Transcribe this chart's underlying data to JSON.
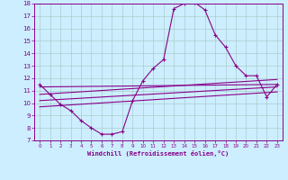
{
  "title": "",
  "xlabel": "Windchill (Refroidissement éolien,°C)",
  "background_color": "#cceeff",
  "line_color": "#880088",
  "grid_color": "#aacccc",
  "xlim": [
    -0.5,
    23.5
  ],
  "ylim": [
    7,
    18
  ],
  "yticks": [
    7,
    8,
    9,
    10,
    11,
    12,
    13,
    14,
    15,
    16,
    17,
    18
  ],
  "xticks": [
    0,
    1,
    2,
    3,
    4,
    5,
    6,
    7,
    8,
    9,
    10,
    11,
    12,
    13,
    14,
    15,
    16,
    17,
    18,
    19,
    20,
    21,
    22,
    23
  ],
  "main_x": [
    0,
    1,
    2,
    3,
    4,
    5,
    6,
    7,
    8,
    9,
    10,
    11,
    12,
    13,
    14,
    15,
    16,
    17,
    18,
    19,
    20,
    21,
    22,
    23
  ],
  "main_y": [
    11.5,
    10.7,
    9.9,
    9.4,
    8.6,
    8.0,
    7.5,
    7.5,
    7.7,
    10.2,
    11.8,
    12.8,
    13.5,
    17.6,
    18.0,
    18.1,
    17.5,
    15.5,
    14.5,
    13.0,
    12.2,
    12.2,
    10.5,
    11.5
  ],
  "ref_lines": [
    {
      "x": [
        0,
        23
      ],
      "y": [
        11.3,
        11.5
      ]
    },
    {
      "x": [
        0,
        23
      ],
      "y": [
        10.7,
        11.9
      ]
    },
    {
      "x": [
        0,
        23
      ],
      "y": [
        10.2,
        11.3
      ]
    },
    {
      "x": [
        0,
        23
      ],
      "y": [
        9.7,
        10.9
      ]
    }
  ]
}
